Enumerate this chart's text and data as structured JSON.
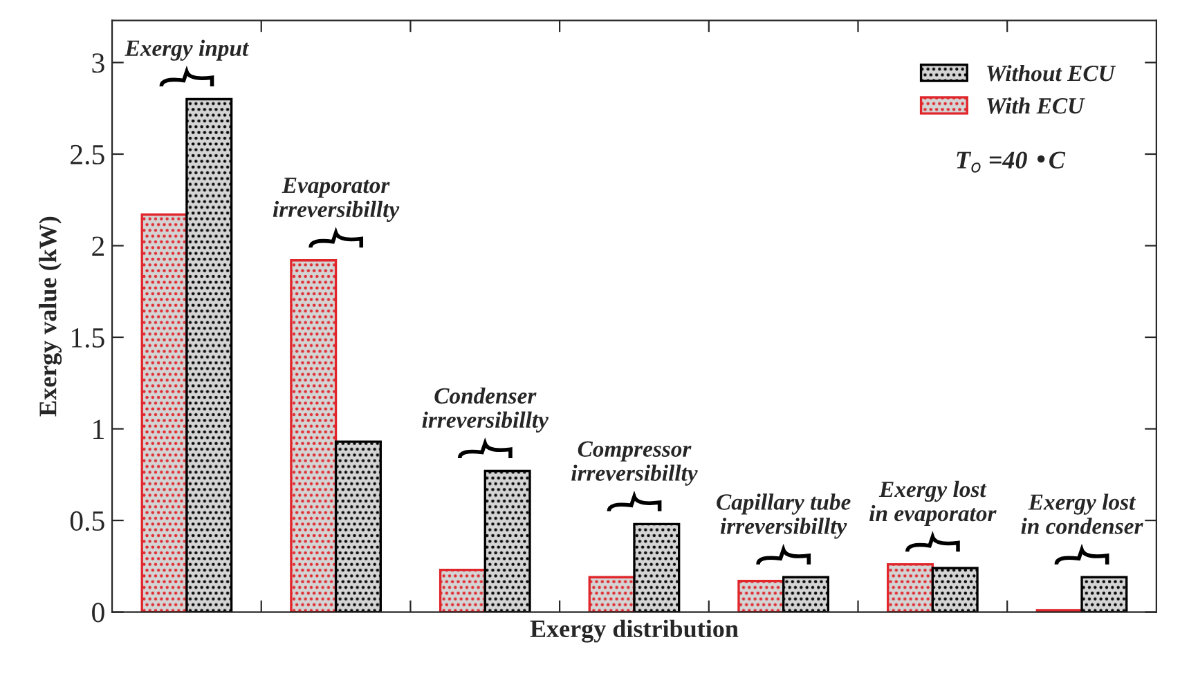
{
  "chart_data": {
    "type": "bar",
    "xlabel": "Exergy distribution",
    "ylabel": "Exergy value (kW)",
    "categories": [
      null,
      null,
      null,
      null,
      null,
      null,
      null
    ],
    "series": [
      {
        "name": "With ECU",
        "color": "#e0252b",
        "values": [
          2.17,
          1.92,
          0.23,
          0.19,
          0.17,
          0.26,
          0.01
        ]
      },
      {
        "name": "Without ECU",
        "color": "#000000",
        "values": [
          2.8,
          0.93,
          0.77,
          0.48,
          0.19,
          0.24,
          0.19
        ]
      }
    ],
    "annotations": [
      "Exergy input",
      "Evaporator\nirreversibillty",
      "Condenser\nirreversibillty",
      "Compressor\nirreversibillty",
      "Capillary tube\nirreversibillty",
      "Exergy lost\nin evaporator",
      "Exergy lost\nin condenser",
      "T$_{o}$ =40 •C"
    ],
    "ylim": [
      0,
      3.23
    ],
    "yticks": [
      0,
      0.5,
      1,
      1.5,
      2,
      2.5,
      3
    ],
    "tick_labels": "y",
    "grid": false,
    "legend": "top right"
  }
}
